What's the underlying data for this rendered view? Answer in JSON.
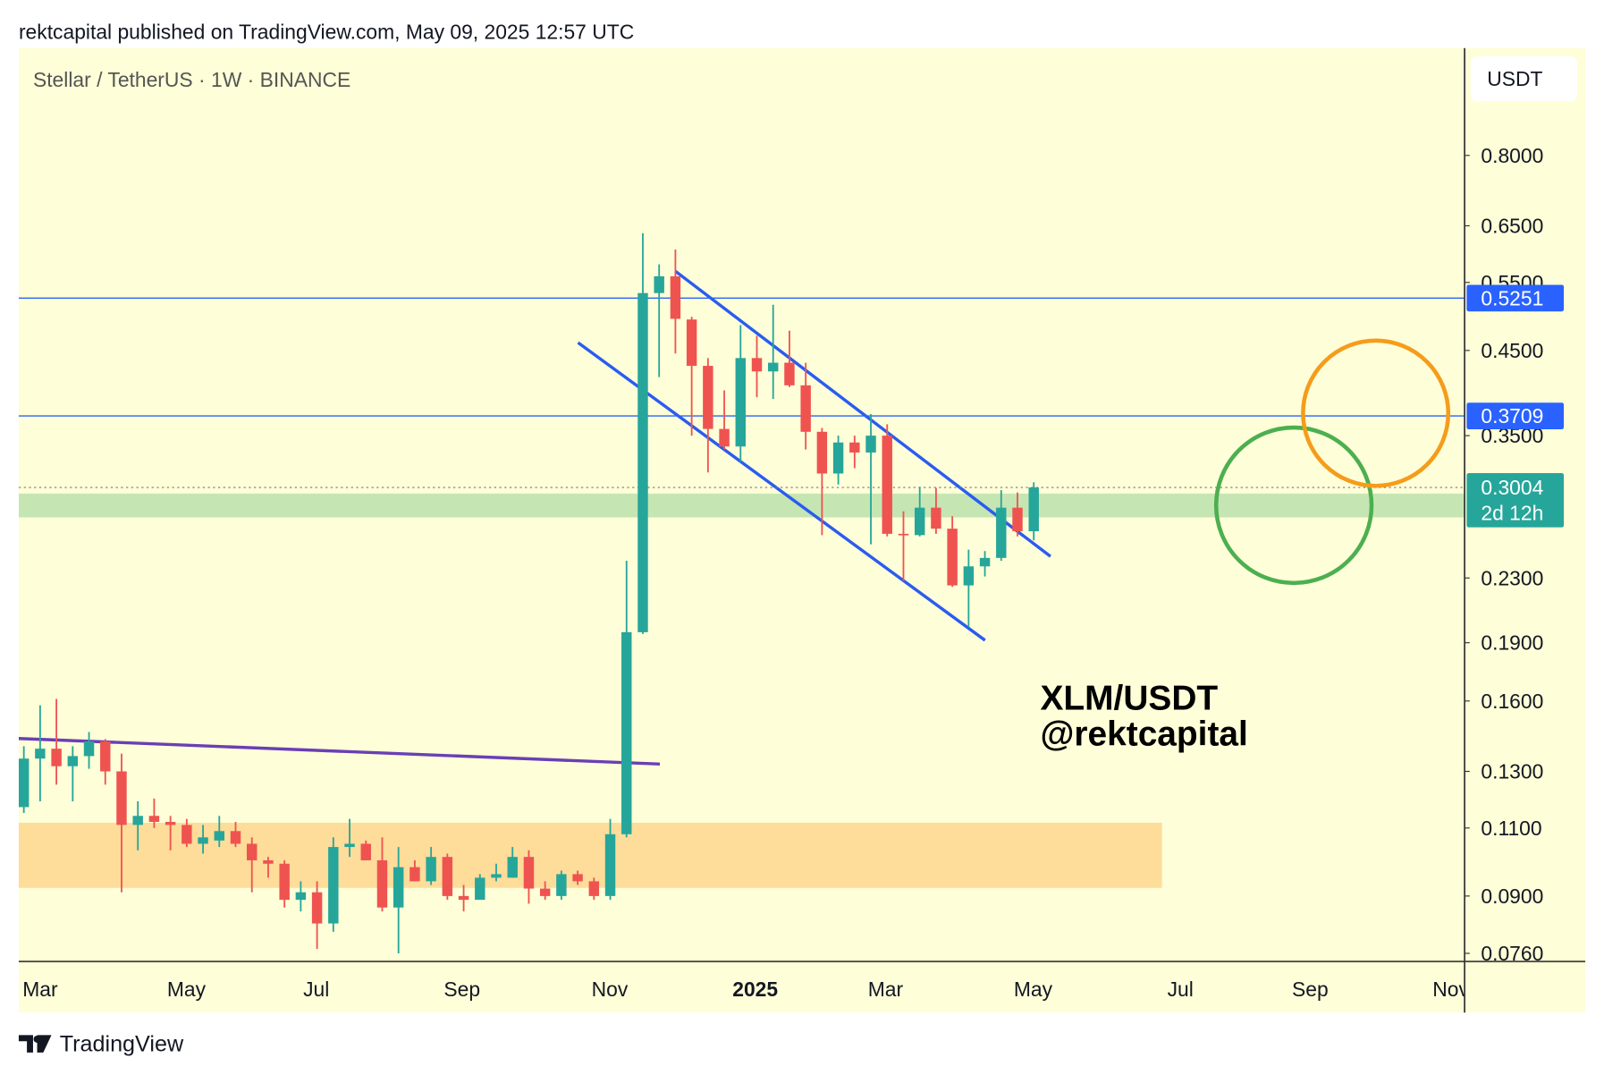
{
  "header": {
    "published": "rektcapital published on TradingView.com, May 09, 2025 12:57 UTC"
  },
  "footer": {
    "brand": "TradingView"
  },
  "chart_data": {
    "type": "candlestick",
    "title": "Stellar / TetherUS · 1W · BINANCE",
    "currency": "USDT",
    "log_scale": true,
    "ylim": [
      0.0742,
      1.098
    ],
    "yticks": [
      {
        "value": 0.076,
        "label": "0.0760"
      },
      {
        "value": 0.09,
        "label": "0.0900"
      },
      {
        "value": 0.11,
        "label": "0.1100"
      },
      {
        "value": 0.13,
        "label": "0.1300"
      },
      {
        "value": 0.16,
        "label": "0.1600"
      },
      {
        "value": 0.19,
        "label": "0.1900"
      },
      {
        "value": 0.23,
        "label": "0.2300"
      },
      {
        "value": 0.35,
        "label": "0.3500"
      },
      {
        "value": 0.45,
        "label": "0.4500"
      },
      {
        "value": 0.55,
        "label": "0.5500"
      },
      {
        "value": 0.65,
        "label": "0.6500"
      },
      {
        "value": 0.8,
        "label": "0.8000"
      }
    ],
    "xticks": [
      "Mar",
      "May",
      "Jul",
      "Sep",
      "Nov",
      "2025",
      "Mar",
      "May",
      "Jul",
      "Sep",
      "Nov"
    ],
    "open": [
      0.117,
      0.135,
      0.139,
      0.132,
      0.136,
      0.142,
      0.13,
      0.111,
      0.114,
      0.112,
      0.111,
      0.105,
      0.106,
      0.109,
      0.105,
      0.1,
      0.099,
      0.089,
      0.091,
      0.083,
      0.104,
      0.105,
      0.1,
      0.087,
      0.098,
      0.094,
      0.101,
      0.09,
      0.089,
      0.095,
      0.095,
      0.101,
      0.092,
      0.09,
      0.096,
      0.094,
      0.09,
      0.108,
      0.196,
      0.533,
      0.56,
      0.493,
      0.43,
      0.357,
      0.339,
      0.44,
      0.423,
      0.434,
      0.406,
      0.354,
      0.313,
      0.343,
      0.333,
      0.35,
      0.262,
      0.261,
      0.283,
      0.266,
      0.225,
      0.238,
      0.244,
      0.283,
      0.264
    ],
    "high": [
      0.14,
      0.158,
      0.161,
      0.14,
      0.146,
      0.143,
      0.137,
      0.119,
      0.12,
      0.114,
      0.113,
      0.111,
      0.114,
      0.112,
      0.107,
      0.101,
      0.1,
      0.094,
      0.094,
      0.107,
      0.113,
      0.106,
      0.107,
      0.104,
      0.1,
      0.104,
      0.102,
      0.093,
      0.096,
      0.099,
      0.104,
      0.103,
      0.094,
      0.097,
      0.097,
      0.095,
      0.113,
      0.242,
      0.636,
      0.58,
      0.606,
      0.497,
      0.44,
      0.4,
      0.485,
      0.47,
      0.515,
      0.477,
      0.434,
      0.358,
      0.35,
      0.35,
      0.373,
      0.362,
      0.28,
      0.301,
      0.3,
      0.276,
      0.25,
      0.249,
      0.298,
      0.296,
      0.305
    ],
    "low": [
      0.115,
      0.119,
      0.125,
      0.119,
      0.131,
      0.125,
      0.091,
      0.103,
      0.11,
      0.103,
      0.104,
      0.102,
      0.104,
      0.104,
      0.091,
      0.095,
      0.087,
      0.086,
      0.077,
      0.081,
      0.101,
      0.1,
      0.086,
      0.076,
      0.094,
      0.093,
      0.089,
      0.086,
      0.089,
      0.094,
      0.095,
      0.088,
      0.089,
      0.089,
      0.093,
      0.089,
      0.089,
      0.107,
      0.195,
      0.416,
      0.446,
      0.35,
      0.314,
      0.336,
      0.324,
      0.392,
      0.39,
      0.404,
      0.336,
      0.261,
      0.303,
      0.318,
      0.254,
      0.26,
      0.228,
      0.26,
      0.262,
      0.224,
      0.199,
      0.231,
      0.242,
      0.26,
      0.257
    ],
    "close": [
      0.135,
      0.139,
      0.132,
      0.136,
      0.142,
      0.13,
      0.111,
      0.114,
      0.112,
      0.111,
      0.105,
      0.107,
      0.109,
      0.105,
      0.1,
      0.099,
      0.089,
      0.091,
      0.083,
      0.104,
      0.105,
      0.1,
      0.087,
      0.098,
      0.094,
      0.101,
      0.09,
      0.089,
      0.095,
      0.096,
      0.101,
      0.092,
      0.09,
      0.096,
      0.094,
      0.09,
      0.108,
      0.196,
      0.533,
      0.56,
      0.494,
      0.43,
      0.357,
      0.339,
      0.44,
      0.423,
      0.434,
      0.406,
      0.354,
      0.313,
      0.343,
      0.333,
      0.35,
      0.262,
      0.261,
      0.283,
      0.266,
      0.225,
      0.238,
      0.244,
      0.283,
      0.264,
      0.3004
    ],
    "up_color": "#26a69a",
    "down_color": "#ef5350",
    "levels": [
      {
        "value": 0.5251,
        "color": "#2962ff"
      },
      {
        "value": 0.3709,
        "color": "#2962ff"
      }
    ],
    "last_price": {
      "value": 0.3004,
      "countdown": "2d 12h",
      "color": "#26a69a"
    },
    "zones": [
      {
        "range": [
          0.275,
          0.295
        ],
        "color": "#c5e6b3"
      },
      {
        "range": [
          0.0922,
          0.1117
        ],
        "color": "#fedc9a"
      }
    ],
    "annotations": [
      "XLM/USDT",
      "@rektcapital"
    ]
  }
}
